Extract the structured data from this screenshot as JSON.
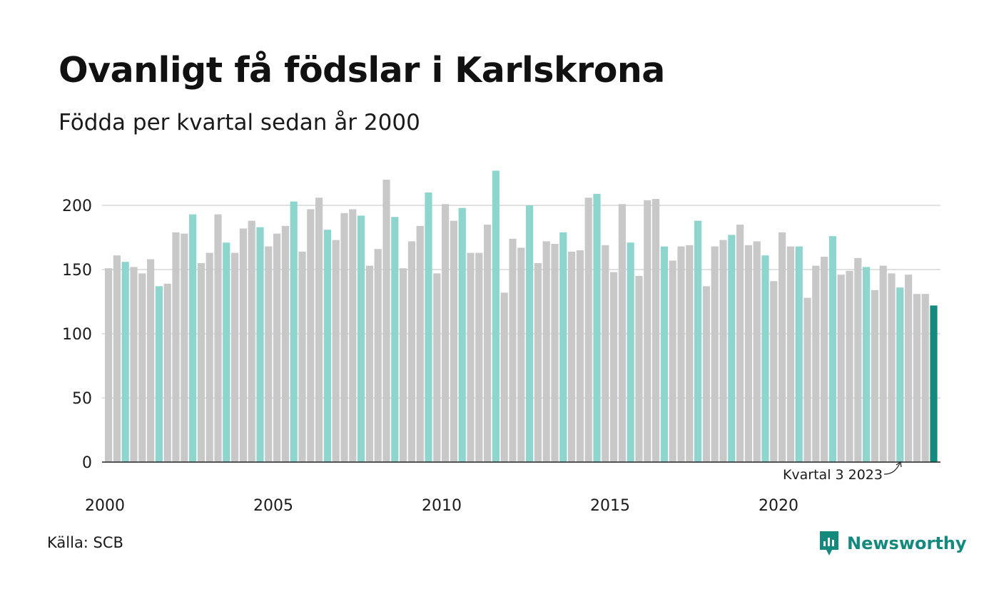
{
  "title": "Ovanligt få födslar i Karlskrona",
  "subtitle": "Födda per kvartal sedan år 2000",
  "source": "Källa: SCB",
  "brand": {
    "name": "Newsworthy",
    "icon": "newsworthy-logo-icon"
  },
  "colors": {
    "other_quarters": "#c8c8c8",
    "same_quarter": "#8dd5cd",
    "latest": "#14897d",
    "grid": "#e0e0e0",
    "axis": "#222222"
  },
  "chart_data": {
    "type": "bar",
    "title": "Ovanligt få födslar i Karlskrona",
    "subtitle": "Födda per kvartal sedan år 2000",
    "xlabel": "",
    "ylabel": "",
    "ylim": [
      0,
      230
    ],
    "yticks": [
      0,
      50,
      100,
      150,
      200
    ],
    "grid": true,
    "x_tick_labels": [
      "2000",
      "2005",
      "2010",
      "2015",
      "2020"
    ],
    "x_tick_years": [
      2000,
      2005,
      2010,
      2015,
      2020
    ],
    "start_year": 2000,
    "highlight_quarter": 3,
    "values": [
      151,
      161,
      156,
      152,
      147,
      158,
      137,
      139,
      179,
      178,
      193,
      155,
      163,
      193,
      171,
      163,
      182,
      188,
      183,
      168,
      178,
      184,
      203,
      164,
      197,
      206,
      181,
      173,
      194,
      197,
      192,
      153,
      166,
      220,
      191,
      151,
      172,
      184,
      210,
      147,
      201,
      188,
      198,
      163,
      163,
      185,
      227,
      132,
      174,
      167,
      200,
      155,
      172,
      170,
      179,
      164,
      165,
      206,
      209,
      169,
      148,
      201,
      171,
      145,
      204,
      205,
      168,
      157,
      168,
      169,
      188,
      137,
      168,
      173,
      177,
      185,
      169,
      172,
      161,
      141,
      179,
      168,
      168,
      128,
      153,
      160,
      176,
      146,
      149,
      159,
      152,
      134,
      153,
      147,
      136,
      146,
      131,
      131,
      122
    ],
    "annotation": {
      "text": "Kvartal 3 2023"
    }
  }
}
